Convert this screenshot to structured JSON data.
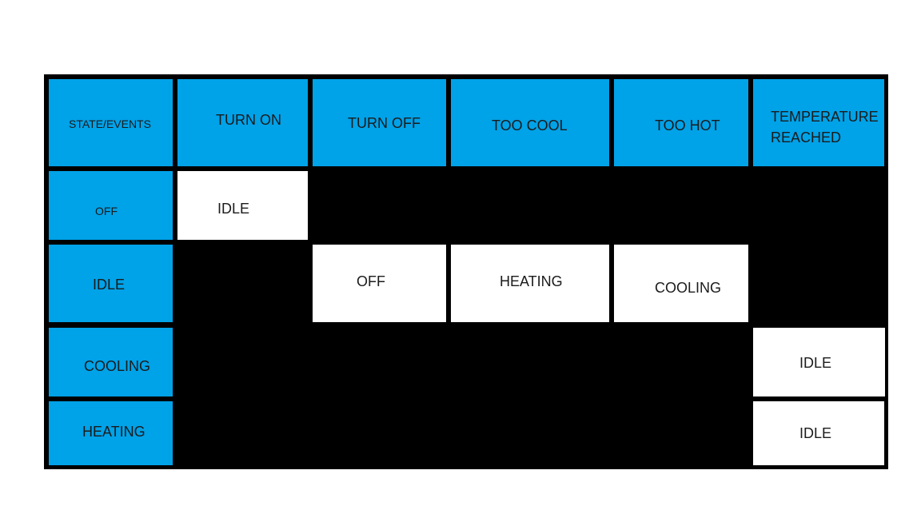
{
  "corner_label": "STATE/EVENTS",
  "events": [
    "TURN ON",
    "TURN OFF",
    "TOO COOL",
    "TOO HOT",
    "TEMPERATURE REACHED"
  ],
  "events_wrapped": {
    "temperature_line1": "TEMPERATURE",
    "temperature_line2": "REACHED"
  },
  "states": [
    "OFF",
    "IDLE",
    "COOLING",
    "HEATING"
  ],
  "transitions": {
    "off_turn_on": "IDLE",
    "idle_turn_off": "OFF",
    "idle_too_cool": "HEATING",
    "idle_too_hot": "COOLING",
    "cooling_temperature_reached": "IDLE",
    "heating_temperature_reached": "IDLE"
  },
  "colors": {
    "header": "#00a2e8",
    "filled": "#ffffff",
    "empty": "#000000"
  }
}
